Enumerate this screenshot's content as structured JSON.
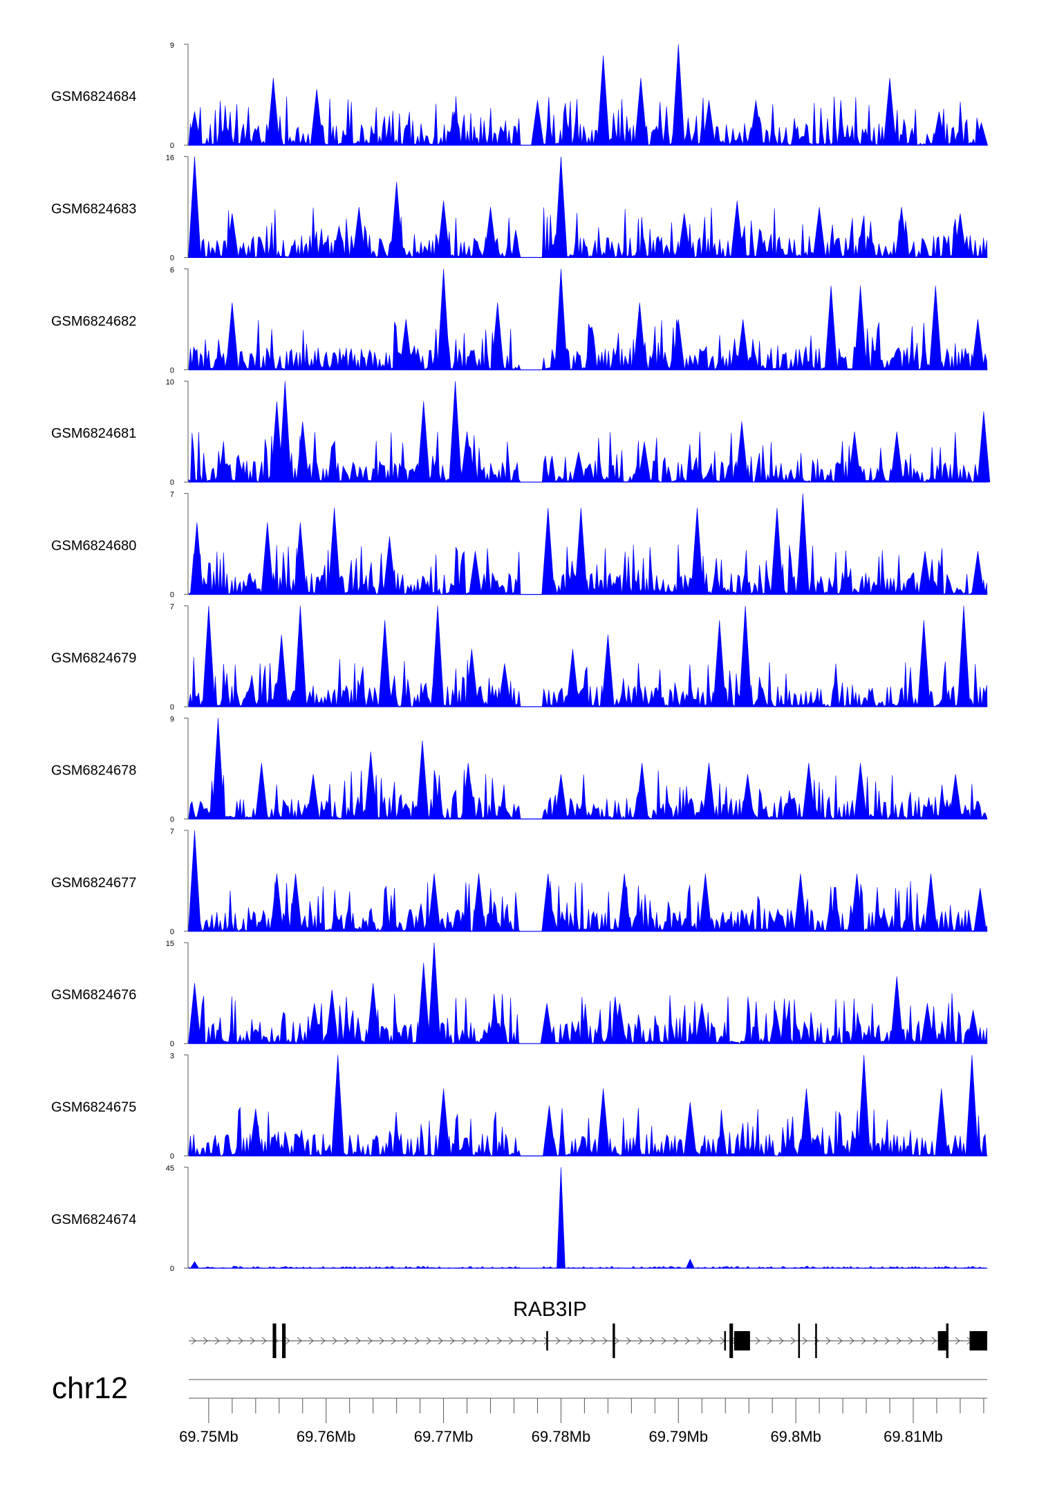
{
  "chart_data": {
    "type": "area",
    "title": "",
    "xlabel": "",
    "ylabel": "",
    "track_color": "#0000FF",
    "chromosome": "chr12",
    "xlim_mb": [
      69.7483,
      69.8163
    ],
    "x_ticks": [
      {
        "value": 69.75,
        "label": "69.75Mb"
      },
      {
        "value": 69.76,
        "label": "69.76Mb"
      },
      {
        "value": 69.77,
        "label": "69.77Mb"
      },
      {
        "value": 69.78,
        "label": "69.78Mb"
      },
      {
        "value": 69.79,
        "label": "69.79Mb"
      },
      {
        "value": 69.8,
        "label": "69.8Mb"
      },
      {
        "value": 69.81,
        "label": "69.81Mb"
      }
    ],
    "tracks": [
      {
        "name": "GSM6824684",
        "ylim": [
          0,
          9
        ],
        "ymin_label": "0",
        "ymax_label": "9",
        "peaks": [
          [
            69.7488,
            3
          ],
          [
            69.7555,
            6
          ],
          [
            69.7592,
            5
          ],
          [
            69.7709,
            3
          ],
          [
            69.778,
            4
          ],
          [
            69.7836,
            8
          ],
          [
            69.7868,
            6
          ],
          [
            69.79,
            9
          ],
          [
            69.7926,
            4
          ],
          [
            69.7966,
            4
          ],
          [
            69.808,
            6
          ],
          [
            69.8122,
            3
          ],
          [
            69.8158,
            2
          ]
        ]
      },
      {
        "name": "GSM6824683",
        "ylim": [
          0,
          16
        ],
        "ymin_label": "0",
        "ymax_label": "16",
        "peaks": [
          [
            69.7488,
            16
          ],
          [
            69.752,
            7
          ],
          [
            69.7611,
            5
          ],
          [
            69.7628,
            8
          ],
          [
            69.766,
            12
          ],
          [
            69.77,
            9
          ],
          [
            69.774,
            8
          ],
          [
            69.78,
            16
          ],
          [
            69.7905,
            7
          ],
          [
            69.795,
            9
          ],
          [
            69.802,
            8
          ],
          [
            69.809,
            8
          ],
          [
            69.814,
            7
          ]
        ]
      },
      {
        "name": "GSM6824682",
        "ylim": [
          0,
          6
        ],
        "ymin_label": "0",
        "ymax_label": "6",
        "peaks": [
          [
            69.752,
            4
          ],
          [
            69.7668,
            3
          ],
          [
            69.77,
            6
          ],
          [
            69.7746,
            4
          ],
          [
            69.78,
            6
          ],
          [
            69.7867,
            4
          ],
          [
            69.79,
            3
          ],
          [
            69.7955,
            3
          ],
          [
            69.803,
            5
          ],
          [
            69.8055,
            5
          ],
          [
            69.8119,
            5
          ],
          [
            69.8155,
            3
          ]
        ]
      },
      {
        "name": "GSM6824681",
        "ylim": [
          0,
          10
        ],
        "ymin_label": "0",
        "ymax_label": "10",
        "peaks": [
          [
            69.7558,
            8
          ],
          [
            69.7565,
            10
          ],
          [
            69.758,
            6
          ],
          [
            69.7683,
            8
          ],
          [
            69.771,
            10
          ],
          [
            69.772,
            5
          ],
          [
            69.7815,
            3
          ],
          [
            69.7871,
            4
          ],
          [
            69.7954,
            6
          ],
          [
            69.805,
            5
          ],
          [
            69.8086,
            5
          ],
          [
            69.816,
            7
          ]
        ]
      },
      {
        "name": "GSM6824680",
        "ylim": [
          0,
          7
        ],
        "ymin_label": "0",
        "ymax_label": "7",
        "peaks": [
          [
            69.749,
            5
          ],
          [
            69.755,
            5
          ],
          [
            69.7578,
            5
          ],
          [
            69.7607,
            6
          ],
          [
            69.7654,
            4
          ],
          [
            69.7727,
            3
          ],
          [
            69.7789,
            6
          ],
          [
            69.7817,
            6
          ],
          [
            69.7916,
            6
          ],
          [
            69.7984,
            6
          ],
          [
            69.8006,
            7
          ],
          [
            69.811,
            3
          ],
          [
            69.8155,
            3
          ]
        ]
      },
      {
        "name": "GSM6824679",
        "ylim": [
          0,
          7
        ],
        "ymin_label": "0",
        "ymax_label": "7",
        "peaks": [
          [
            69.75,
            7
          ],
          [
            69.7562,
            5
          ],
          [
            69.7578,
            7
          ],
          [
            69.765,
            6
          ],
          [
            69.7695,
            7
          ],
          [
            69.7724,
            4
          ],
          [
            69.7752,
            3
          ],
          [
            69.781,
            4
          ],
          [
            69.784,
            5
          ],
          [
            69.7935,
            6
          ],
          [
            69.7957,
            7
          ],
          [
            69.8109,
            6
          ],
          [
            69.8143,
            7
          ]
        ]
      },
      {
        "name": "GSM6824678",
        "ylim": [
          0,
          9
        ],
        "ymin_label": "0",
        "ymax_label": "9",
        "peaks": [
          [
            69.7508,
            9
          ],
          [
            69.7545,
            5
          ],
          [
            69.7589,
            4
          ],
          [
            69.7638,
            6
          ],
          [
            69.7682,
            7
          ],
          [
            69.7721,
            5
          ],
          [
            69.78,
            4
          ],
          [
            69.7869,
            5
          ],
          [
            69.7926,
            5
          ],
          [
            69.7959,
            4
          ],
          [
            69.8011,
            5
          ],
          [
            69.8055,
            5
          ],
          [
            69.8136,
            4
          ]
        ]
      },
      {
        "name": "GSM6824677",
        "ylim": [
          0,
          7
        ],
        "ymin_label": "0",
        "ymax_label": "7",
        "peaks": [
          [
            69.7488,
            7
          ],
          [
            69.7558,
            4
          ],
          [
            69.7574,
            4
          ],
          [
            69.7692,
            4
          ],
          [
            69.773,
            4
          ],
          [
            69.7789,
            4
          ],
          [
            69.7854,
            4
          ],
          [
            69.7923,
            4
          ],
          [
            69.8004,
            4
          ],
          [
            69.8052,
            4
          ],
          [
            69.8115,
            4
          ],
          [
            69.8157,
            3
          ]
        ]
      },
      {
        "name": "GSM6824676",
        "ylim": [
          0,
          15
        ],
        "ymin_label": "0",
        "ymax_label": "15",
        "peaks": [
          [
            69.7488,
            9
          ],
          [
            69.759,
            6
          ],
          [
            69.7605,
            8
          ],
          [
            69.764,
            9
          ],
          [
            69.7683,
            12
          ],
          [
            69.7692,
            15
          ],
          [
            69.7788,
            6
          ],
          [
            69.785,
            6
          ],
          [
            69.792,
            6
          ],
          [
            69.7983,
            5
          ],
          [
            69.8086,
            10
          ],
          [
            69.8112,
            6
          ],
          [
            69.8151,
            5
          ]
        ]
      },
      {
        "name": "GSM6824675",
        "ylim": [
          0,
          3
        ],
        "ymin_label": "0",
        "ymax_label": "3",
        "peaks": [
          [
            69.754,
            1.4
          ],
          [
            69.761,
            3
          ],
          [
            69.77,
            2
          ],
          [
            69.779,
            1.5
          ],
          [
            69.7836,
            2
          ],
          [
            69.791,
            1.6
          ],
          [
            69.8009,
            2
          ],
          [
            69.8058,
            3
          ],
          [
            69.8124,
            2
          ],
          [
            69.815,
            3
          ]
        ]
      },
      {
        "name": "GSM6824674",
        "ylim": [
          0,
          45
        ],
        "ymin_label": "0",
        "ymax_label": "45",
        "peaks": [
          [
            69.7488,
            3
          ],
          [
            69.78,
            45
          ],
          [
            69.791,
            4
          ]
        ]
      }
    ],
    "gene": {
      "name": "RAB3IP",
      "strand": "+",
      "start": 69.7483,
      "end": 69.8163,
      "exons": [
        [
          69.75545,
          69.75575,
          "tall"
        ],
        [
          69.75625,
          69.75655,
          "tall"
        ],
        [
          69.77875,
          69.7789,
          "short"
        ],
        [
          69.7844,
          69.7846,
          "tall"
        ],
        [
          69.7939,
          69.79405,
          "short"
        ],
        [
          69.79435,
          69.79465,
          "tall"
        ],
        [
          69.79475,
          69.7961,
          "thick"
        ],
        [
          69.8002,
          69.80035,
          "tall"
        ],
        [
          69.80165,
          69.8018,
          "tall"
        ],
        [
          69.8121,
          69.8128,
          "thick"
        ],
        [
          69.8128,
          69.813,
          "tall"
        ],
        [
          69.8148,
          69.8163,
          "thick"
        ]
      ]
    }
  }
}
